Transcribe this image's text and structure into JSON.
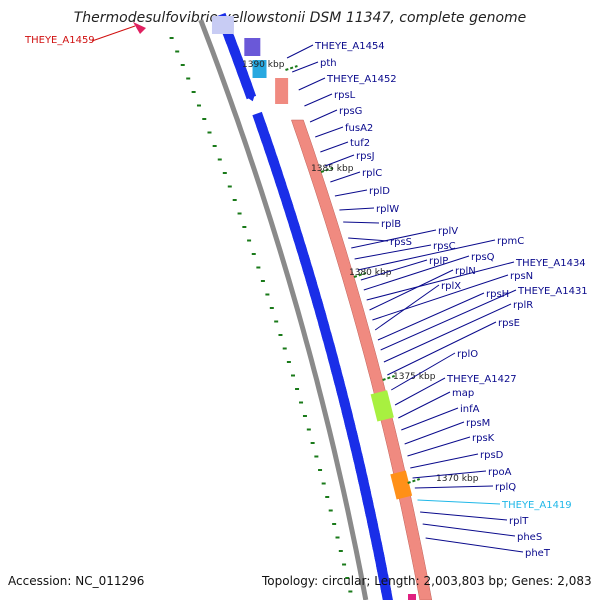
{
  "title": "Thermodesulfovibrio yellowstonii DSM 11347, complete genome",
  "footer": {
    "accession": "Accession: NC_011296",
    "stats": "Topology: circular; Length: 2,003,803 bp; Genes: 2,083"
  },
  "colors": {
    "backbone": "#8a8a8a",
    "cds_forward": "#1a2ee8",
    "rna_track": "#f08a80",
    "green_feature": "#a8f040",
    "orange_feature": "#ff9018",
    "label": "#0a0a8c",
    "highlight_label": "#20b8e8",
    "offscreen_label": "#d01010",
    "scale_tick": "#1a7a1a"
  },
  "scale_labels": [
    "1390 kbp",
    "1385 kbp",
    "1380 kbp",
    "1375 kbp",
    "1370 kbp"
  ],
  "offscreen_gene": "THEYE_A1459",
  "gene_labels": [
    "THEYE_A1454",
    "pth",
    "THEYE_A1452",
    "rpsL",
    "rpsG",
    "fusA2",
    "tuf2",
    "rpsJ",
    "rplC",
    "rplD",
    "rplW",
    "rplB",
    "rpsS",
    "rplV",
    "rpsC",
    "rpmC",
    "rplP",
    "rpsQ",
    "THEYE_A1434",
    "rplN",
    "rpsN",
    "rplX",
    "rpsH",
    "THEYE_A1431",
    "rplR",
    "rpsE",
    "rplO",
    "THEYE_A1427",
    "map",
    "infA",
    "rpsM",
    "rpsK",
    "rpsD",
    "rpoA",
    "rplQ",
    "THEYE_A1419",
    "rplT",
    "pheS",
    "pheT"
  ]
}
